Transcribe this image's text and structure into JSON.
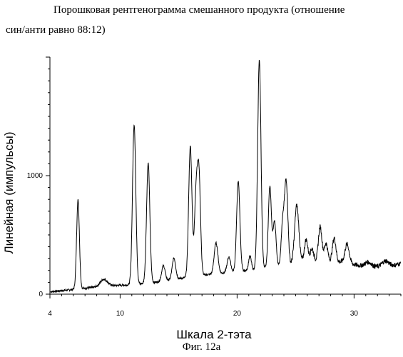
{
  "chart_data": {
    "type": "line",
    "title": "Порошковая рентгенограмма смешанного продукта (отношение син/анти равно 88:12)",
    "title_line1": "Порошковая рентгенограмма смешанного продукта (отношение",
    "title_line2": "син/анти равно 88:12)",
    "xlabel": "Шкала 2-тэта",
    "ylabel": "Линейная (импульсы)",
    "caption": "Фиг. 12а",
    "xlim": [
      4,
      34
    ],
    "ylim": [
      0,
      2000
    ],
    "x_ticks": [
      "4",
      "10",
      "20",
      "30"
    ],
    "x_tick_values": [
      4,
      10,
      20,
      30
    ],
    "y_ticks": [
      "0",
      "1000"
    ],
    "y_tick_values": [
      0,
      1000
    ],
    "grid": false,
    "baseline": [
      [
        4,
        20
      ],
      [
        6,
        40
      ],
      [
        7,
        50
      ],
      [
        9,
        70
      ],
      [
        11,
        80
      ],
      [
        13,
        100
      ],
      [
        15,
        130
      ],
      [
        17,
        160
      ],
      [
        19,
        180
      ],
      [
        21,
        200
      ],
      [
        23,
        230
      ],
      [
        25,
        260
      ],
      [
        27,
        280
      ],
      [
        29,
        270
      ],
      [
        31,
        230
      ],
      [
        33,
        230
      ],
      [
        34,
        260
      ]
    ],
    "peaks": [
      {
        "x": 6.4,
        "height": 750,
        "width": 0.12
      },
      {
        "x": 8.6,
        "height": 60,
        "width": 0.3
      },
      {
        "x": 11.2,
        "height": 1350,
        "width": 0.14
      },
      {
        "x": 12.4,
        "height": 1010,
        "width": 0.14
      },
      {
        "x": 13.7,
        "height": 130,
        "width": 0.15
      },
      {
        "x": 14.6,
        "height": 180,
        "width": 0.15
      },
      {
        "x": 16.0,
        "height": 1100,
        "width": 0.14
      },
      {
        "x": 16.5,
        "height": 700,
        "width": 0.14
      },
      {
        "x": 16.75,
        "height": 780,
        "width": 0.13
      },
      {
        "x": 18.2,
        "height": 260,
        "width": 0.16
      },
      {
        "x": 19.3,
        "height": 130,
        "width": 0.15
      },
      {
        "x": 20.1,
        "height": 760,
        "width": 0.14
      },
      {
        "x": 21.1,
        "height": 120,
        "width": 0.12
      },
      {
        "x": 21.9,
        "height": 1760,
        "width": 0.14
      },
      {
        "x": 22.8,
        "height": 680,
        "width": 0.13
      },
      {
        "x": 23.2,
        "height": 380,
        "width": 0.13
      },
      {
        "x": 23.9,
        "height": 350,
        "width": 0.13
      },
      {
        "x": 24.2,
        "height": 700,
        "width": 0.14
      },
      {
        "x": 25.1,
        "height": 490,
        "width": 0.18
      },
      {
        "x": 25.9,
        "height": 190,
        "width": 0.15
      },
      {
        "x": 26.4,
        "height": 110,
        "width": 0.15
      },
      {
        "x": 27.1,
        "height": 290,
        "width": 0.15
      },
      {
        "x": 27.6,
        "height": 150,
        "width": 0.15
      },
      {
        "x": 28.3,
        "height": 200,
        "width": 0.15
      },
      {
        "x": 29.4,
        "height": 160,
        "width": 0.18
      },
      {
        "x": 31.2,
        "height": 40,
        "width": 0.3
      },
      {
        "x": 32.7,
        "height": 50,
        "width": 0.3
      }
    ]
  }
}
